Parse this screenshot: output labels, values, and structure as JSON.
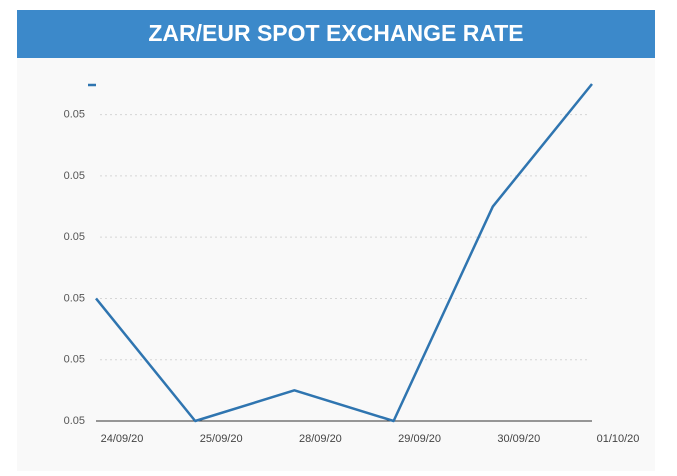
{
  "chart_data": {
    "type": "line",
    "title": "ZAR/EUR SPOT EXCHANGE RATE",
    "categories": [
      "24/09/20",
      "25/09/20",
      "28/09/20",
      "29/09/20",
      "30/09/20",
      "01/10/20"
    ],
    "series": [
      {
        "color": "#2f75b0",
        "values": [
          0.0502,
          0.05,
          0.05005,
          0.05,
          0.05035,
          0.05055
        ]
      }
    ],
    "ylim": [
      0.05,
      0.05055
    ],
    "yticks": [
      {
        "value": 0.05,
        "label": "0.05"
      },
      {
        "value": 0.0501,
        "label": "0.05"
      },
      {
        "value": 0.0502,
        "label": "0.05"
      },
      {
        "value": 0.0503,
        "label": "0.05"
      },
      {
        "value": 0.0504,
        "label": "0.05"
      },
      {
        "value": 0.0505,
        "label": "0.05"
      }
    ],
    "grid": true
  }
}
